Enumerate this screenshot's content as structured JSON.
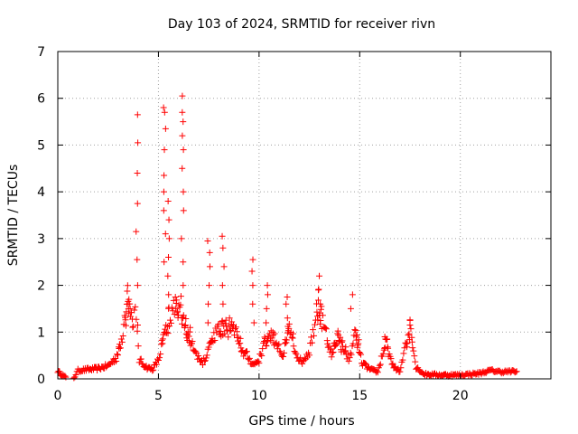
{
  "chart_data": {
    "type": "scatter",
    "title": "Day 103 of 2024, SRMTID for receiver rivn",
    "xlabel": "GPS time / hours",
    "ylabel": "SRMTID / TECUs",
    "xlim": [
      0,
      24.5
    ],
    "ylim": [
      0,
      7
    ],
    "x_ticks": [
      0,
      5,
      10,
      15,
      20
    ],
    "y_ticks": [
      0,
      1,
      2,
      3,
      4,
      5,
      6,
      7
    ],
    "x_tick_labels": [
      "0",
      "5",
      "10",
      "15",
      "20"
    ],
    "y_tick_labels": [
      "0",
      "1",
      "2",
      "3",
      "4",
      "5",
      "6",
      "7"
    ],
    "grid": true,
    "marker": "+",
    "color": "#ff0000",
    "profile": [
      [
        0.0,
        0.16
      ],
      [
        0.4,
        0.02
      ],
      [
        0.8,
        0.02
      ],
      [
        1.0,
        0.18
      ],
      [
        1.5,
        0.2
      ],
      [
        2.0,
        0.22
      ],
      [
        2.5,
        0.28
      ],
      [
        2.9,
        0.45
      ],
      [
        3.2,
        0.9
      ],
      [
        3.45,
        1.6
      ],
      [
        3.7,
        1.3
      ],
      [
        3.85,
        1.45
      ],
      [
        4.05,
        0.4
      ],
      [
        4.4,
        0.25
      ],
      [
        4.7,
        0.2
      ],
      [
        5.0,
        0.4
      ],
      [
        5.2,
        0.75
      ],
      [
        5.5,
        1.3
      ],
      [
        5.8,
        1.5
      ],
      [
        6.1,
        1.4
      ],
      [
        6.3,
        1.2
      ],
      [
        6.6,
        0.8
      ],
      [
        6.9,
        0.5
      ],
      [
        7.2,
        0.35
      ],
      [
        7.5,
        0.6
      ],
      [
        7.8,
        1.0
      ],
      [
        8.2,
        1.1
      ],
      [
        8.6,
        1.05
      ],
      [
        8.9,
        0.95
      ],
      [
        9.1,
        0.6
      ],
      [
        9.4,
        0.5
      ],
      [
        9.7,
        0.3
      ],
      [
        10.0,
        0.4
      ],
      [
        10.3,
        0.8
      ],
      [
        10.6,
        1.0
      ],
      [
        10.9,
        0.7
      ],
      [
        11.2,
        0.5
      ],
      [
        11.5,
        1.0
      ],
      [
        11.8,
        0.6
      ],
      [
        12.1,
        0.35
      ],
      [
        12.5,
        0.6
      ],
      [
        12.9,
        1.5
      ],
      [
        13.3,
        1.0
      ],
      [
        13.6,
        0.5
      ],
      [
        13.9,
        0.9
      ],
      [
        14.2,
        0.6
      ],
      [
        14.5,
        0.4
      ],
      [
        14.8,
        1.0
      ],
      [
        15.1,
        0.35
      ],
      [
        15.5,
        0.2
      ],
      [
        15.9,
        0.15
      ],
      [
        16.3,
        0.8
      ],
      [
        16.6,
        0.3
      ],
      [
        17.0,
        0.15
      ],
      [
        17.5,
        1.1
      ],
      [
        17.8,
        0.25
      ],
      [
        18.2,
        0.1
      ],
      [
        19.0,
        0.08
      ],
      [
        20.0,
        0.08
      ],
      [
        21.0,
        0.12
      ],
      [
        21.5,
        0.18
      ],
      [
        22.0,
        0.15
      ],
      [
        22.8,
        0.16
      ]
    ],
    "spikes": [
      [
        3.5,
        [
          1.5,
          1.7,
          1.6
        ]
      ],
      [
        3.95,
        [
          2.0,
          2.55,
          3.15,
          3.75,
          4.4,
          5.05,
          5.65
        ]
      ],
      [
        5.3,
        [
          2.5,
          3.1,
          3.6,
          4.0,
          4.35,
          4.9,
          5.35,
          5.7,
          5.8
        ]
      ],
      [
        5.5,
        [
          1.8,
          2.2,
          2.6,
          3.0,
          3.4,
          3.8
        ]
      ],
      [
        6.2,
        [
          2.0,
          2.5,
          3.0,
          3.6,
          4.0,
          4.5,
          4.9,
          5.2,
          5.5,
          5.7,
          6.05
        ]
      ],
      [
        7.5,
        [
          1.2,
          1.6,
          2.0,
          2.4,
          2.7,
          2.95
        ]
      ],
      [
        8.2,
        [
          1.2,
          1.6,
          2.0,
          2.4,
          2.8,
          3.05
        ]
      ],
      [
        9.7,
        [
          1.2,
          1.6,
          2.0,
          2.3,
          2.55
        ]
      ],
      [
        10.4,
        [
          1.2,
          1.5,
          1.8,
          2.0
        ]
      ],
      [
        11.4,
        [
          1.3,
          1.6,
          1.75
        ]
      ],
      [
        13.0,
        [
          1.6,
          1.9,
          2.2
        ]
      ],
      [
        14.6,
        [
          1.5,
          1.8
        ]
      ],
      [
        16.3,
        [
          0.85,
          0.9
        ]
      ],
      [
        17.5,
        [
          1.15,
          1.25
        ]
      ]
    ]
  }
}
